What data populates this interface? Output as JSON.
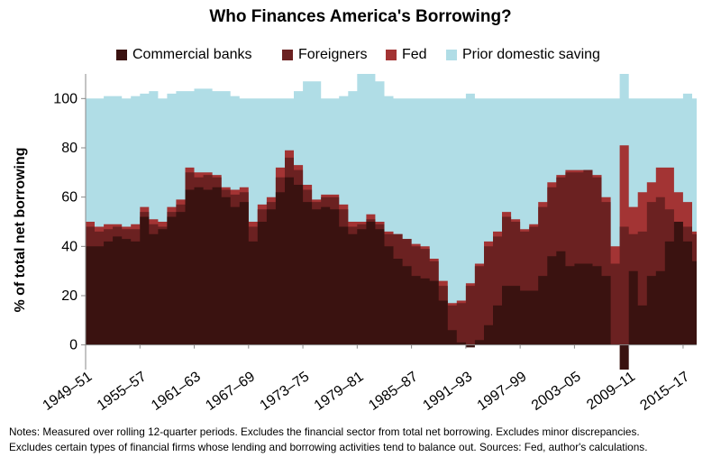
{
  "chart_data": {
    "type": "area",
    "title": "Who Finances America's Borrowing?",
    "ylabel": "% of total net borrowing",
    "xlabel": "",
    "ylim": [
      -10,
      110
    ],
    "yticks": [
      0,
      20,
      40,
      60,
      80,
      100
    ],
    "xticks": [
      "1949–51",
      "1955–57",
      "1961–63",
      "1967–69",
      "1973–75",
      "1979–81",
      "1985–87",
      "1991–93",
      "1997–99",
      "2003–05",
      "2009–11",
      "2015–17"
    ],
    "x_start": 1950,
    "x_end": 2017.5,
    "legend_position": "top",
    "grid": false,
    "series": [
      {
        "name": "Commercial banks",
        "color": "#3a1210",
        "x": [
          1950,
          1951,
          1952,
          1953,
          1954,
          1955,
          1956,
          1957,
          1958,
          1959,
          1960,
          1961,
          1962,
          1963,
          1964,
          1965,
          1966,
          1967,
          1968,
          1969,
          1970,
          1971,
          1972,
          1973,
          1974,
          1975,
          1976,
          1977,
          1978,
          1979,
          1980,
          1981,
          1982,
          1983,
          1984,
          1985,
          1986,
          1987,
          1988,
          1989,
          1990,
          1991,
          1992,
          1993,
          1994,
          1995,
          1996,
          1997,
          1998,
          1999,
          2000,
          2001,
          2002,
          2003,
          2004,
          2005,
          2006,
          2007,
          2008,
          2009,
          2010,
          2011,
          2012,
          2013,
          2014,
          2015,
          2016,
          2017
        ],
        "values": [
          40,
          40,
          42,
          44,
          43,
          42,
          52,
          45,
          47,
          52,
          54,
          63,
          64,
          63,
          64,
          60,
          56,
          58,
          42,
          50,
          55,
          62,
          68,
          65,
          58,
          55,
          56,
          55,
          48,
          45,
          47,
          50,
          47,
          40,
          35,
          32,
          28,
          27,
          26,
          18,
          6,
          1,
          -1,
          2,
          8,
          16,
          24,
          24,
          22,
          22,
          28,
          36,
          38,
          32,
          33,
          33,
          32,
          28,
          0,
          -10,
          30,
          16,
          28,
          30,
          42,
          50,
          42,
          34
        ]
      },
      {
        "name": "Foreigners",
        "color": "#6b2121",
        "x": [
          1950,
          1951,
          1952,
          1953,
          1954,
          1955,
          1956,
          1957,
          1958,
          1959,
          1960,
          1961,
          1962,
          1963,
          1964,
          1965,
          1966,
          1967,
          1968,
          1969,
          1970,
          1971,
          1972,
          1973,
          1974,
          1975,
          1976,
          1977,
          1978,
          1979,
          1980,
          1981,
          1982,
          1983,
          1984,
          1985,
          1986,
          1987,
          1988,
          1989,
          1990,
          1991,
          1992,
          1993,
          1994,
          1995,
          1996,
          1997,
          1998,
          1999,
          2000,
          2001,
          2002,
          2003,
          2004,
          2005,
          2006,
          2007,
          2008,
          2009,
          2010,
          2011,
          2012,
          2013,
          2014,
          2015,
          2016,
          2017
        ],
        "values": [
          48,
          46,
          47,
          48,
          47,
          47,
          54,
          49,
          48,
          54,
          57,
          70,
          68,
          69,
          68,
          63,
          61,
          62,
          48,
          55,
          58,
          68,
          76,
          71,
          63,
          58,
          60,
          60,
          55,
          48,
          49,
          51,
          49,
          45,
          45,
          43,
          40,
          39,
          34,
          24,
          16,
          17,
          24,
          32,
          40,
          44,
          52,
          50,
          46,
          48,
          56,
          64,
          68,
          70,
          70,
          71,
          68,
          58,
          33,
          48,
          45,
          46,
          58,
          60,
          55,
          50,
          48,
          45
        ]
      },
      {
        "name": "Fed",
        "color": "#a33434",
        "x": [
          1950,
          1951,
          1952,
          1953,
          1954,
          1955,
          1956,
          1957,
          1958,
          1959,
          1960,
          1961,
          1962,
          1963,
          1964,
          1965,
          1966,
          1967,
          1968,
          1969,
          1970,
          1971,
          1972,
          1973,
          1974,
          1975,
          1976,
          1977,
          1978,
          1979,
          1980,
          1981,
          1982,
          1983,
          1984,
          1985,
          1986,
          1987,
          1988,
          1989,
          1990,
          1991,
          1992,
          1993,
          1994,
          1995,
          1996,
          1997,
          1998,
          1999,
          2000,
          2001,
          2002,
          2003,
          2004,
          2005,
          2006,
          2007,
          2008,
          2009,
          2010,
          2011,
          2012,
          2013,
          2014,
          2015,
          2016,
          2017
        ],
        "values": [
          50,
          48,
          49,
          49,
          48,
          49,
          56,
          51,
          50,
          56,
          59,
          72,
          70,
          70,
          69,
          64,
          63,
          64,
          50,
          57,
          60,
          72,
          79,
          73,
          65,
          59,
          61,
          61,
          57,
          50,
          50,
          53,
          50,
          46,
          45,
          43,
          41,
          40,
          35,
          26,
          17,
          18,
          25,
          33,
          42,
          46,
          54,
          51,
          47,
          49,
          58,
          66,
          69,
          71,
          71,
          71,
          69,
          60,
          40,
          81,
          56,
          62,
          66,
          72,
          72,
          62,
          58,
          46
        ]
      },
      {
        "name": "Prior domestic saving",
        "color": "#b0dde6",
        "x": [
          1950,
          1951,
          1952,
          1953,
          1954,
          1955,
          1956,
          1957,
          1958,
          1959,
          1960,
          1961,
          1962,
          1963,
          1964,
          1965,
          1966,
          1967,
          1968,
          1969,
          1970,
          1971,
          1972,
          1973,
          1974,
          1975,
          1976,
          1977,
          1978,
          1979,
          1980,
          1981,
          1982,
          1983,
          1984,
          1985,
          1986,
          1987,
          1988,
          1989,
          1990,
          1991,
          1992,
          1993,
          1994,
          1995,
          1996,
          1997,
          1998,
          1999,
          2000,
          2001,
          2002,
          2003,
          2004,
          2005,
          2006,
          2007,
          2008,
          2009,
          2010,
          2011,
          2012,
          2013,
          2014,
          2015,
          2016,
          2017
        ],
        "values": [
          100,
          100,
          101,
          101,
          100,
          101,
          102,
          103,
          100,
          102,
          103,
          103,
          104,
          104,
          103,
          103,
          101,
          100,
          100,
          100,
          100,
          100,
          100,
          103,
          107,
          107,
          100,
          100,
          101,
          103,
          110,
          110,
          107,
          101,
          100,
          100,
          100,
          100,
          100,
          100,
          100,
          100,
          102,
          100,
          100,
          100,
          100,
          100,
          100,
          100,
          100,
          100,
          100,
          100,
          100,
          100,
          100,
          100,
          100,
          110,
          100,
          100,
          100,
          100,
          100,
          100,
          102,
          100
        ]
      }
    ],
    "notes": [
      "Notes: Measured over rolling 12-quarter periods. Excludes the financial sector from total net borrowing. Excludes minor discrepancies.",
      "Excludes certain types of financial firms whose lending and borrowing activities tend to balance out. Sources: Fed, author's calculations."
    ]
  }
}
